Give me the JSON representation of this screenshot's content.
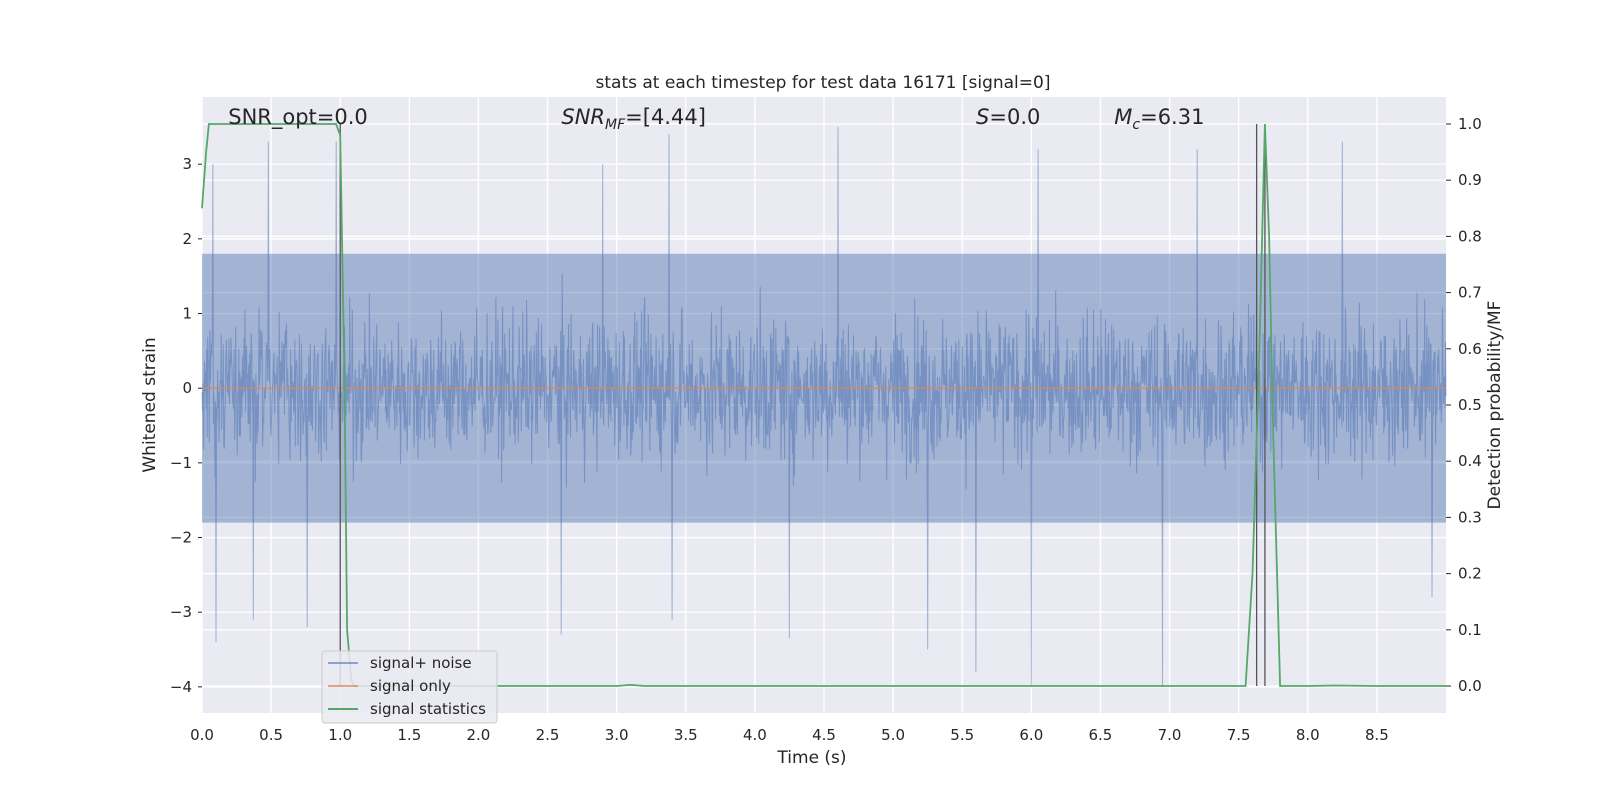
{
  "chart_data": {
    "type": "line",
    "title": "stats at each timestep for test data 16171 [signal=0]",
    "xlabel": "Time (s)",
    "ylabel_left": "Whitened strain",
    "ylabel_right": "Detection probability/MF",
    "xlim": [
      0.0,
      9.0
    ],
    "ylim_left": [
      -4.35,
      3.9
    ],
    "ylim_right": [
      -0.048,
      1.048
    ],
    "x_ticks": [
      "0.0",
      "0.5",
      "1.0",
      "1.5",
      "2.0",
      "2.5",
      "3.0",
      "3.5",
      "4.0",
      "4.5",
      "5.0",
      "5.5",
      "6.0",
      "6.5",
      "7.0",
      "7.5",
      "8.0",
      "8.5"
    ],
    "y_left_ticks": [
      "3",
      "2",
      "1",
      "0",
      "−1",
      "−2",
      "−3",
      "−4"
    ],
    "y_right_ticks": [
      "1.0",
      "0.9",
      "0.8",
      "0.7",
      "0.6",
      "0.5",
      "0.4",
      "0.3",
      "0.2",
      "0.1",
      "0.0"
    ],
    "grid": true,
    "legend_position": "lower-left",
    "annotations": [
      {
        "text": "SNR_opt=0.0",
        "x": 0.19
      },
      {
        "text": "SNR",
        "sub": "MF",
        "suffix": "=[4.44]",
        "italic": true,
        "x": 2.6
      },
      {
        "text": "S",
        "suffix": "=0.0",
        "italic": true,
        "x": 5.6
      },
      {
        "text": "M",
        "sub": "c",
        "suffix": "=6.31",
        "italic": true,
        "x": 6.6
      }
    ],
    "vertical_lines_x": [
      1.0,
      7.63,
      7.69
    ],
    "series": [
      {
        "name": "signal+ noise",
        "color": "#4c72b0",
        "axis": "left",
        "kind": "noise",
        "typical_range": [
          -1.8,
          1.8
        ],
        "notable_peaks": [
          {
            "x": 0.08,
            "y": 3.0
          },
          {
            "x": 0.48,
            "y": 3.3
          },
          {
            "x": 0.97,
            "y": 3.3
          },
          {
            "x": 2.9,
            "y": 3.0
          },
          {
            "x": 3.38,
            "y": 3.4
          },
          {
            "x": 4.6,
            "y": 3.5
          },
          {
            "x": 6.05,
            "y": 3.2
          },
          {
            "x": 7.2,
            "y": 3.2
          },
          {
            "x": 8.25,
            "y": 3.3
          },
          {
            "x": 0.1,
            "y": -3.4
          },
          {
            "x": 0.37,
            "y": -3.1
          },
          {
            "x": 0.76,
            "y": -3.2
          },
          {
            "x": 2.6,
            "y": -3.3
          },
          {
            "x": 3.4,
            "y": -3.1
          },
          {
            "x": 4.25,
            "y": -3.35
          },
          {
            "x": 5.25,
            "y": -3.5
          },
          {
            "x": 5.6,
            "y": -3.8
          },
          {
            "x": 6.0,
            "y": -4.0
          },
          {
            "x": 6.95,
            "y": -4.0
          },
          {
            "x": 8.9,
            "y": -2.8
          }
        ]
      },
      {
        "name": "signal only",
        "color": "#dd8452",
        "axis": "left",
        "x": [
          0.0,
          9.0
        ],
        "y": [
          0.0,
          0.0
        ]
      },
      {
        "name": "signal statistics",
        "color": "#55a868",
        "axis": "right",
        "x": [
          0.0,
          0.03,
          0.05,
          0.1,
          0.9,
          0.97,
          1.0,
          1.03,
          1.05,
          1.08,
          1.1,
          3.0,
          3.1,
          3.2,
          7.55,
          7.6,
          7.65,
          7.69,
          7.72,
          7.75,
          7.8,
          8.0,
          8.2,
          8.5,
          9.0
        ],
        "y": [
          0.85,
          0.95,
          1.0,
          1.0,
          1.0,
          1.0,
          0.98,
          0.55,
          0.1,
          0.01,
          0.0,
          0.0,
          0.002,
          0.0,
          0.0,
          0.2,
          0.6,
          1.0,
          0.8,
          0.45,
          0.0,
          0.0,
          0.001,
          0.0,
          0.0
        ]
      }
    ]
  }
}
